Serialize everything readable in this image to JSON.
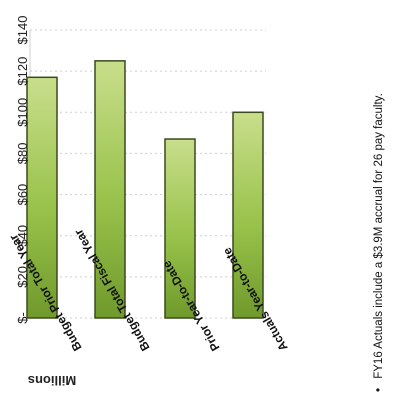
{
  "chart_data": {
    "type": "bar",
    "orientation": "horizontal",
    "rotation": "rotated 90 degrees clockwise",
    "categories": [
      "Actuals Year-to-Date",
      "Prior Year-to-Date",
      "Budget Total Fiscal Year",
      "Budget Prior Total Year"
    ],
    "values": [
      100,
      87,
      125,
      117
    ],
    "xlabel": "Millions",
    "xlim": [
      0,
      140
    ],
    "x_tick_labels": [
      "$-",
      "$20",
      "$40",
      "$60",
      "$80",
      "$100",
      "$120",
      "$140"
    ],
    "grid": true,
    "legend": "none",
    "bar_color": "#98c24a",
    "bar_border_color": "#3c4a1e"
  },
  "footnote": {
    "bullet": "•",
    "text": "FY16 Actuals include a $3.9M accrual for 26 pay faculty."
  }
}
